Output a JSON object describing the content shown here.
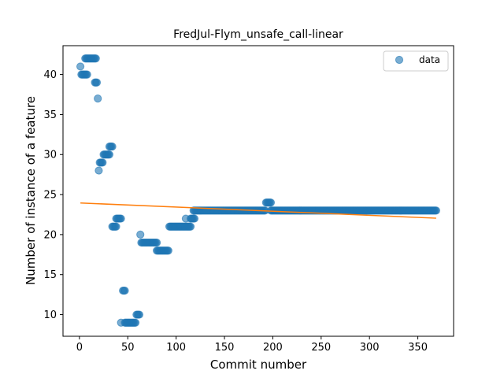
{
  "chart_data": {
    "type": "scatter",
    "title": "FredJul-Flym_unsafe_call-linear",
    "xlabel": "Commit number",
    "ylabel": "Number of instance of a feature",
    "xlim": [
      -17,
      387
    ],
    "ylim": [
      7.3,
      43.6
    ],
    "xticks": [
      0,
      50,
      100,
      150,
      200,
      250,
      300,
      350
    ],
    "yticks": [
      10,
      15,
      20,
      25,
      30,
      35,
      40
    ],
    "legend": {
      "label": "data",
      "position": "top-right"
    },
    "colors": {
      "points": "#1f77b4",
      "fit_line": "#ff7f0e"
    },
    "series": [
      {
        "name": "data",
        "segments": [
          {
            "x": [
              1,
              1
            ],
            "y": 41
          },
          {
            "x": [
              2,
              8
            ],
            "y": 40
          },
          {
            "x": [
              6,
              17
            ],
            "y": 42
          },
          {
            "x": [
              16,
              18
            ],
            "y": 39
          },
          {
            "x": [
              19,
              19
            ],
            "y": 37
          },
          {
            "x": [
              20,
              20
            ],
            "y": 28
          },
          {
            "x": [
              21,
              24
            ],
            "y": 29
          },
          {
            "x": [
              25,
              31
            ],
            "y": 30
          },
          {
            "x": [
              31,
              34
            ],
            "y": 31
          },
          {
            "x": [
              34,
              38
            ],
            "y": 21
          },
          {
            "x": [
              38,
              43
            ],
            "y": 22
          },
          {
            "x": [
              43,
              43
            ],
            "y": 9
          },
          {
            "x": [
              45,
              47
            ],
            "y": 13
          },
          {
            "x": [
              47,
              58
            ],
            "y": 9
          },
          {
            "x": [
              59,
              62
            ],
            "y": 10
          },
          {
            "x": [
              63,
              63
            ],
            "y": 20
          },
          {
            "x": [
              64,
              80
            ],
            "y": 19
          },
          {
            "x": [
              80,
              92
            ],
            "y": 18
          },
          {
            "x": [
              93,
              115
            ],
            "y": 21
          },
          {
            "x": [
              110,
              110
            ],
            "y": 22
          },
          {
            "x": [
              115,
              119
            ],
            "y": 22
          },
          {
            "x": [
              118,
              192
            ],
            "y": 23
          },
          {
            "x": [
              193,
              198
            ],
            "y": 24
          },
          {
            "x": [
              198,
              369
            ],
            "y": 23
          }
        ]
      }
    ],
    "fit_line": {
      "x": [
        1,
        369
      ],
      "y": [
        23.95,
        22.05
      ]
    }
  }
}
